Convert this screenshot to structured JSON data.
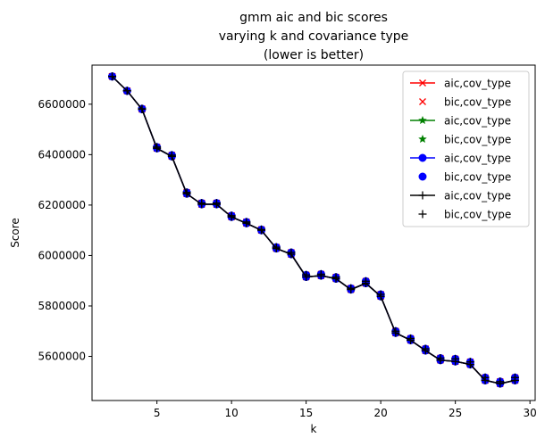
{
  "chart_data": {
    "type": "line",
    "title": [
      "gmm aic and bic scores",
      "varying k and covariance type",
      "(lower is better)"
    ],
    "xlabel": "k",
    "ylabel": "Score",
    "xlim": [
      0.65,
      30.35
    ],
    "ylim": [
      5425000,
      6755000
    ],
    "xticks": [
      5,
      10,
      15,
      20,
      25,
      30
    ],
    "yticks": [
      5600000,
      5800000,
      6000000,
      6200000,
      6400000,
      6600000
    ],
    "grid": false,
    "legend_position": "top-right",
    "x": [
      2,
      3,
      4,
      5,
      6,
      7,
      8,
      9,
      10,
      11,
      12,
      13,
      14,
      15,
      16,
      17,
      18,
      19,
      20,
      21,
      22,
      23,
      24,
      25,
      26,
      27,
      28,
      29
    ],
    "aic": [
      6710000,
      6653000,
      6580000,
      6425000,
      6393000,
      6245000,
      6203000,
      6203000,
      6153000,
      6128000,
      6100000,
      6028000,
      6005000,
      5915000,
      5920000,
      5908000,
      5865000,
      5890000,
      5838000,
      5693000,
      5664000,
      5623000,
      5585000,
      5580000,
      5568000,
      5505000,
      5492000,
      5505000
    ],
    "bic": [
      6710000,
      6653000,
      6582000,
      6430000,
      6398000,
      6250000,
      6208000,
      6208000,
      6158000,
      6133000,
      6103000,
      6033000,
      6012000,
      5923000,
      5926000,
      5914000,
      5870000,
      5898000,
      5846000,
      5700000,
      5671000,
      5630000,
      5593000,
      5590000,
      5578000,
      5516000,
      5500000,
      5516000
    ],
    "series": [
      {
        "name": "aic,cov_type",
        "color": "#ff0000",
        "marker": "x",
        "line": true,
        "values_key": "aic"
      },
      {
        "name": "bic,cov_type",
        "color": "#ff0000",
        "marker": "x",
        "line": false,
        "values_key": "bic"
      },
      {
        "name": "aic,cov_type",
        "color": "#008000",
        "marker": "star",
        "line": true,
        "values_key": "aic"
      },
      {
        "name": "bic,cov_type",
        "color": "#008000",
        "marker": "star",
        "line": false,
        "values_key": "bic"
      },
      {
        "name": "aic,cov_type",
        "color": "#0000ff",
        "marker": "circle",
        "line": true,
        "values_key": "aic"
      },
      {
        "name": "bic,cov_type",
        "color": "#0000ff",
        "marker": "circle",
        "line": false,
        "values_key": "bic"
      },
      {
        "name": "aic,cov_type",
        "color": "#000000",
        "marker": "plus",
        "line": true,
        "values_key": "aic"
      },
      {
        "name": "bic,cov_type",
        "color": "#000000",
        "marker": "plus",
        "line": false,
        "values_key": "bic"
      }
    ]
  }
}
